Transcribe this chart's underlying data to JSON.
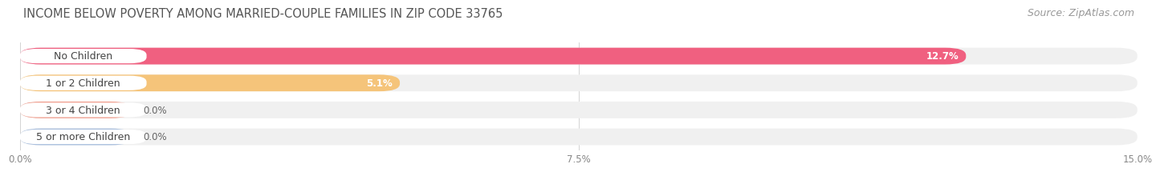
{
  "title": "INCOME BELOW POVERTY AMONG MARRIED-COUPLE FAMILIES IN ZIP CODE 33765",
  "source": "Source: ZipAtlas.com",
  "categories": [
    "No Children",
    "1 or 2 Children",
    "3 or 4 Children",
    "5 or more Children"
  ],
  "values": [
    12.7,
    5.1,
    0.0,
    0.0
  ],
  "bar_colors": [
    "#f06080",
    "#f5c47a",
    "#f0a090",
    "#a8bedd"
  ],
  "xlim": [
    0,
    15.0
  ],
  "xticks": [
    0.0,
    7.5,
    15.0
  ],
  "xticklabels": [
    "0.0%",
    "7.5%",
    "15.0%"
  ],
  "background_color": "#ffffff",
  "row_bg_color": "#f0f0f0",
  "track_color": "#e8e8e8",
  "title_fontsize": 10.5,
  "source_fontsize": 9,
  "label_fontsize": 9,
  "value_fontsize": 8.5
}
